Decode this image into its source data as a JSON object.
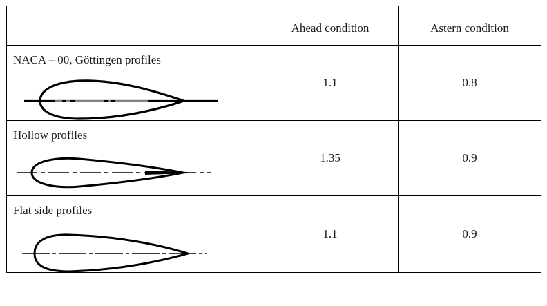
{
  "table": {
    "headers": [
      "",
      "Ahead condition",
      "Astern condition"
    ],
    "rows": [
      {
        "profile": "NACA – 00, Göttingen profiles",
        "shape": "naca-profile-drawing",
        "ahead": "1.1",
        "astern": "0.8"
      },
      {
        "profile": "Hollow profiles",
        "shape": "hollow-profile-drawing",
        "ahead": "1.35",
        "astern": "0.9"
      },
      {
        "profile": "Flat side profiles",
        "shape": "flat-side-profile-drawing",
        "ahead": "1.1",
        "astern": "0.9"
      }
    ]
  }
}
